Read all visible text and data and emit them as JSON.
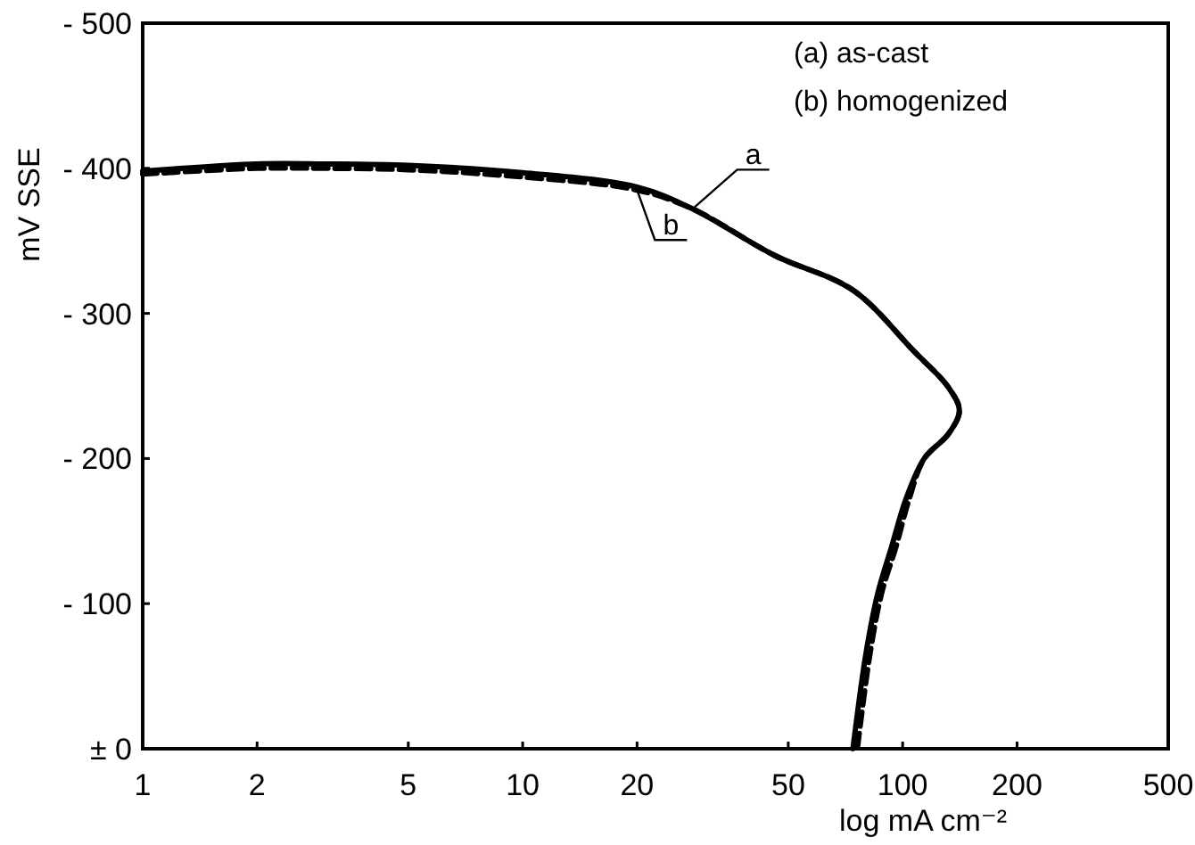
{
  "chart_data": {
    "type": "line",
    "xlabel": "log mA cm⁻²",
    "ylabel": "mV SSE",
    "log": "x",
    "xlim": [
      1,
      500
    ],
    "xticks": [
      1,
      2,
      5,
      10,
      20,
      50,
      100,
      200,
      500
    ],
    "ylim": [
      0,
      -500
    ],
    "yticks": [
      {
        "value": -500,
        "label": "- 500"
      },
      {
        "value": -400,
        "label": "- 400"
      },
      {
        "value": -300,
        "label": "- 300"
      },
      {
        "value": -200,
        "label": "- 200"
      },
      {
        "value": -100,
        "label": "- 100"
      },
      {
        "value": 0,
        "label": "± 0"
      }
    ],
    "grid": false,
    "annotations": [
      "(a) as-cast",
      "(b) homogenized"
    ],
    "series": [
      {
        "name": "a",
        "color": "#000000",
        "line_style": "solid",
        "x": [
          1,
          2,
          3,
          5,
          10,
          20,
          28,
          46,
          74,
          107,
          132,
          141,
          132,
          114,
          102,
          93.5,
          86,
          80,
          74
        ],
        "values": [
          -398,
          -403,
          -403,
          -402,
          -397,
          -387,
          -372,
          -340,
          -316,
          -274,
          -249,
          -233,
          -217,
          -200,
          -172,
          -139,
          -107,
          -65,
          0
        ]
      },
      {
        "name": "b",
        "color": "#000000",
        "line_style": "dashed",
        "x": [
          1,
          2,
          3,
          5,
          10,
          20,
          28,
          46,
          74,
          107,
          132,
          141,
          132,
          114,
          104,
          96,
          88,
          82,
          76
        ],
        "values": [
          -396,
          -400,
          -400,
          -399,
          -394,
          -385,
          -372,
          -340,
          -316,
          -274,
          -249,
          -233,
          -217,
          -200,
          -172,
          -139,
          -107,
          -65,
          0
        ]
      }
    ]
  }
}
